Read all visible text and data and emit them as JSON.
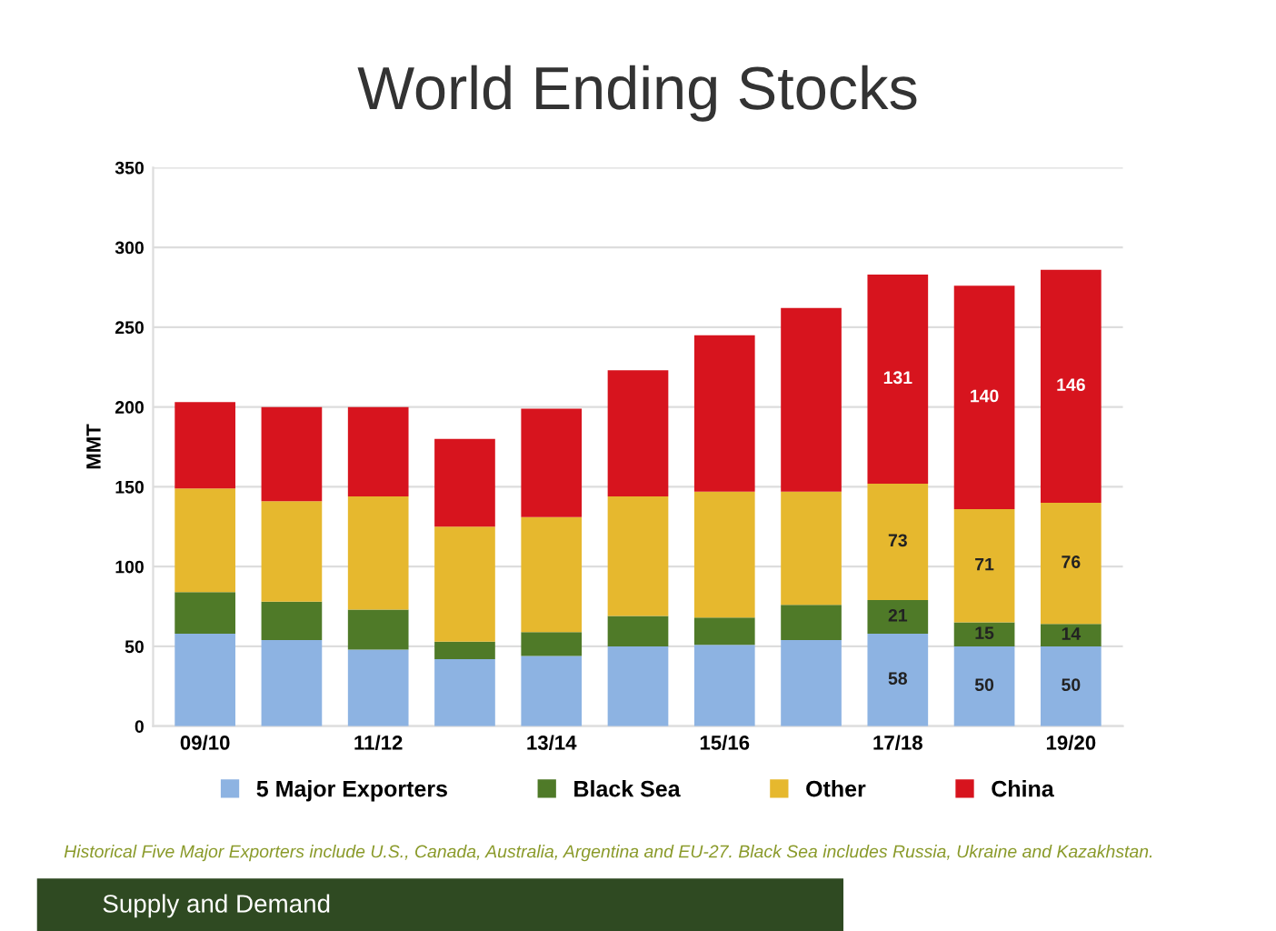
{
  "chart_data": {
    "type": "bar",
    "stacked": true,
    "title": "World Ending Stocks",
    "ylabel": "MMT",
    "categories": [
      "09/10",
      null,
      "11/12",
      null,
      "13/14",
      null,
      "15/16",
      null,
      "17/18",
      null,
      "19/20"
    ],
    "series": [
      {
        "name": "5 Major Exporters",
        "color": "#8db3e2",
        "values": [
          58,
          54,
          48,
          42,
          44,
          50,
          51,
          54,
          58,
          50,
          50
        ],
        "value_labels": [
          null,
          null,
          null,
          null,
          null,
          null,
          null,
          null,
          "58",
          "50",
          "50"
        ]
      },
      {
        "name": "Black Sea",
        "color": "#4f7a28",
        "values": [
          26,
          24,
          25,
          11,
          15,
          19,
          17,
          22,
          21,
          15,
          14
        ],
        "value_labels": [
          null,
          null,
          null,
          null,
          null,
          null,
          null,
          null,
          "21",
          "15",
          "14"
        ]
      },
      {
        "name": "Other",
        "color": "#e6b82e",
        "values": [
          65,
          63,
          71,
          72,
          72,
          75,
          79,
          71,
          73,
          71,
          76
        ],
        "value_labels": [
          null,
          null,
          null,
          null,
          null,
          null,
          null,
          null,
          "73",
          "71",
          "76"
        ]
      },
      {
        "name": "China",
        "color": "#d7141e",
        "values": [
          54,
          59,
          56,
          55,
          68,
          79,
          98,
          115,
          131,
          140,
          146
        ],
        "value_labels": [
          null,
          null,
          null,
          null,
          null,
          null,
          null,
          null,
          "131",
          "140",
          "146"
        ]
      }
    ],
    "ylim": [
      0,
      350
    ],
    "yticks": [
      0,
      50,
      100,
      150,
      200,
      250,
      300,
      350
    ],
    "grid": "y",
    "legend": "bottom",
    "annotations": [
      "Historical Five Major Exporters include U.S., Canada, Australia, Argentina and EU-27. Black Sea includes Russia, Ukraine and Kazakhstan.",
      "Supply and Demand"
    ]
  }
}
